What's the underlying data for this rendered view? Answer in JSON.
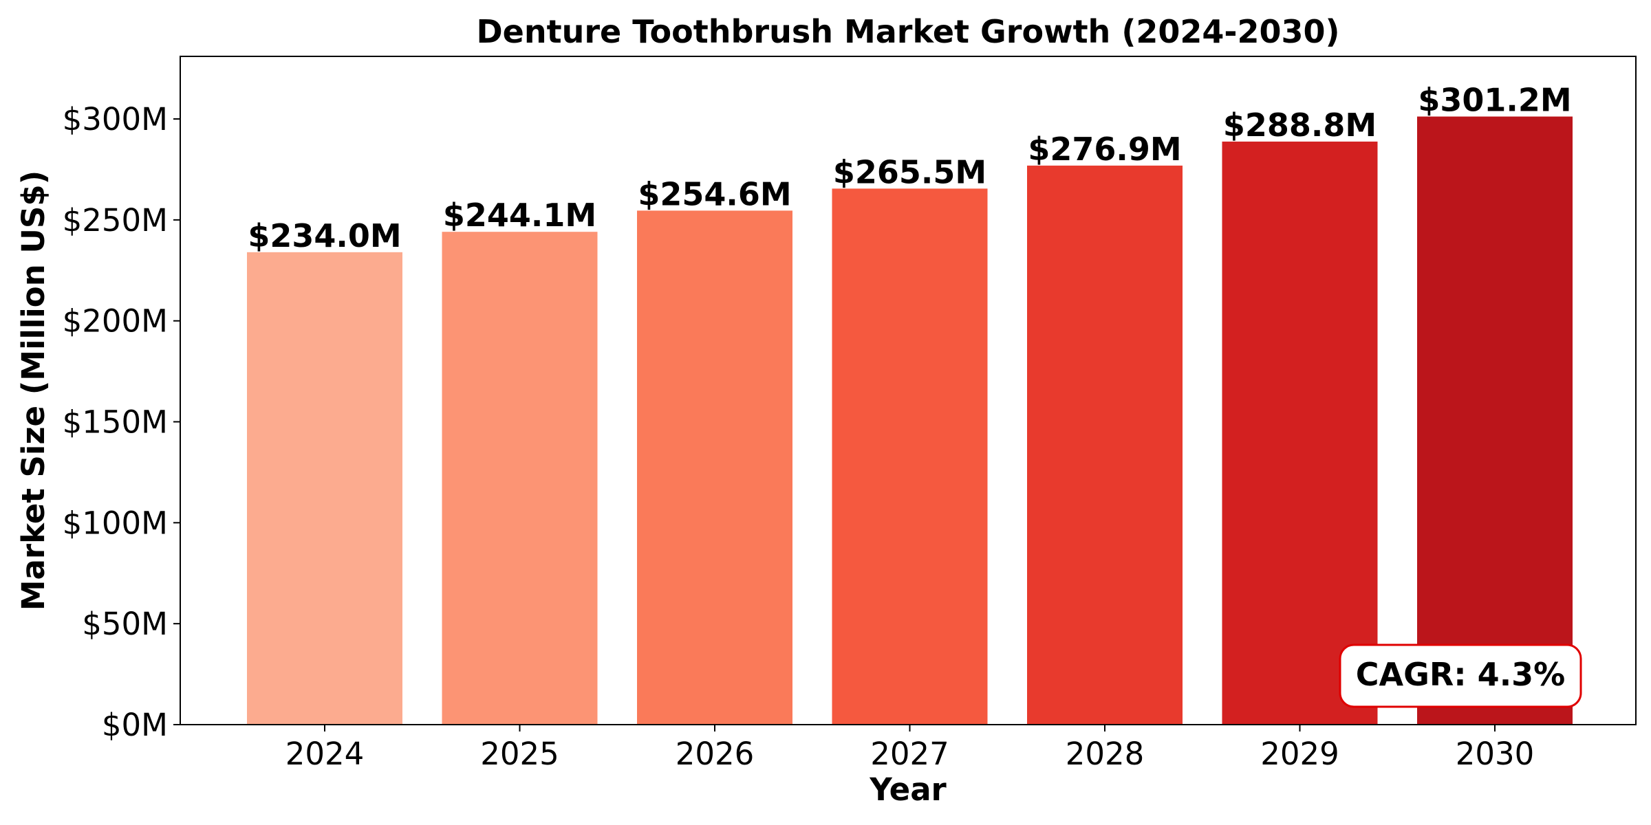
{
  "chart_data": {
    "type": "bar",
    "title": "Denture Toothbrush Market Growth (2024-2030)",
    "xlabel": "Year",
    "ylabel": "Market Size (Million US$)",
    "categories": [
      "2024",
      "2025",
      "2026",
      "2027",
      "2028",
      "2029",
      "2030"
    ],
    "values": [
      234.0,
      244.1,
      254.6,
      265.5,
      276.9,
      288.8,
      301.2
    ],
    "value_labels": [
      "$234.0M",
      "$244.1M",
      "$254.6M",
      "$265.5M",
      "$276.9M",
      "$288.8M",
      "$301.2M"
    ],
    "bar_colors": [
      "#fcab8f",
      "#fc9474",
      "#fa7a59",
      "#f5593f",
      "#e83a2d",
      "#d32020",
      "#bb151b"
    ],
    "ylim": [
      0,
      331
    ],
    "yticks": [
      0,
      50,
      100,
      150,
      200,
      250,
      300
    ],
    "ytick_labels": [
      "$0M",
      "$50M",
      "$100M",
      "$150M",
      "$200M",
      "$250M",
      "$300M"
    ],
    "grid": false,
    "legend": "none",
    "annotation": {
      "text": "CAGR: 4.3%",
      "placement": "bottom-right",
      "border_color": "#e00000"
    }
  }
}
